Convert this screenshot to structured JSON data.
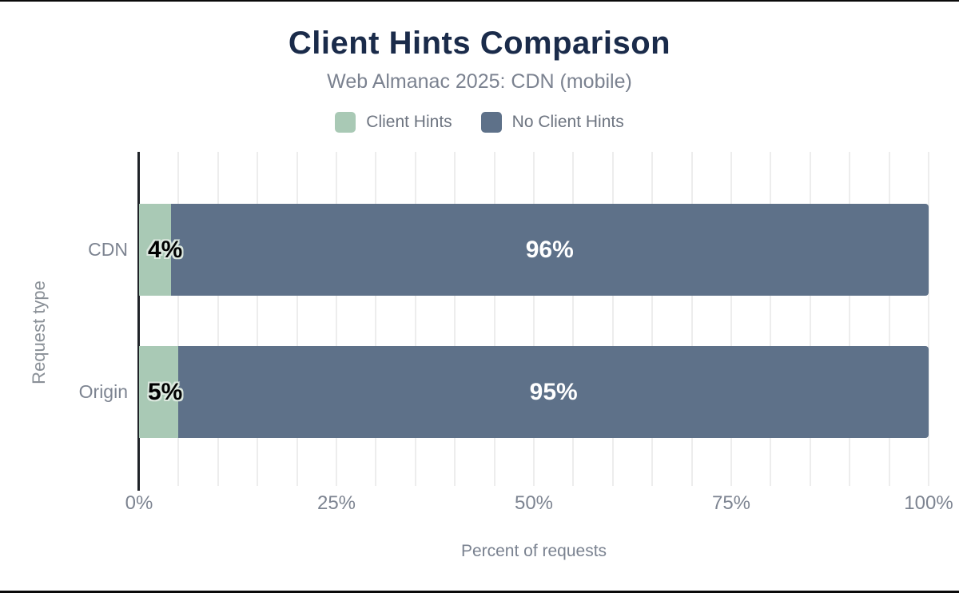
{
  "chart_data": {
    "type": "bar",
    "orientation": "horizontal",
    "stacked": true,
    "title": "Client Hints Comparison",
    "subtitle": "Web Almanac 2025: CDN (mobile)",
    "categories": [
      "CDN",
      "Origin"
    ],
    "series": [
      {
        "name": "Client Hints",
        "color": "#a9c9b5",
        "values": [
          4,
          5
        ],
        "labels": [
          "4%",
          "5%"
        ]
      },
      {
        "name": "No Client Hints",
        "color": "#5e7189",
        "values": [
          96,
          95
        ],
        "labels": [
          "96%",
          "95%"
        ]
      }
    ],
    "xlabel": "Percent of requests",
    "ylabel": "Request type",
    "xlim": [
      0,
      100
    ],
    "xticks": [
      {
        "value": 0,
        "label": "0%"
      },
      {
        "value": 25,
        "label": "25%"
      },
      {
        "value": 50,
        "label": "50%"
      },
      {
        "value": 75,
        "label": "75%"
      },
      {
        "value": 100,
        "label": "100%"
      }
    ],
    "grid": {
      "step": 5,
      "color": "#ededed",
      "on": true
    },
    "legend_position": "top",
    "colors": {
      "title": "#1a2b4a",
      "subtitle_text": "#7b8290",
      "axis_line": "#1f2228",
      "tick_text": "#7d8491",
      "value_label_on_start": "#000000",
      "value_label_on_rest": "#ffffff"
    }
  }
}
